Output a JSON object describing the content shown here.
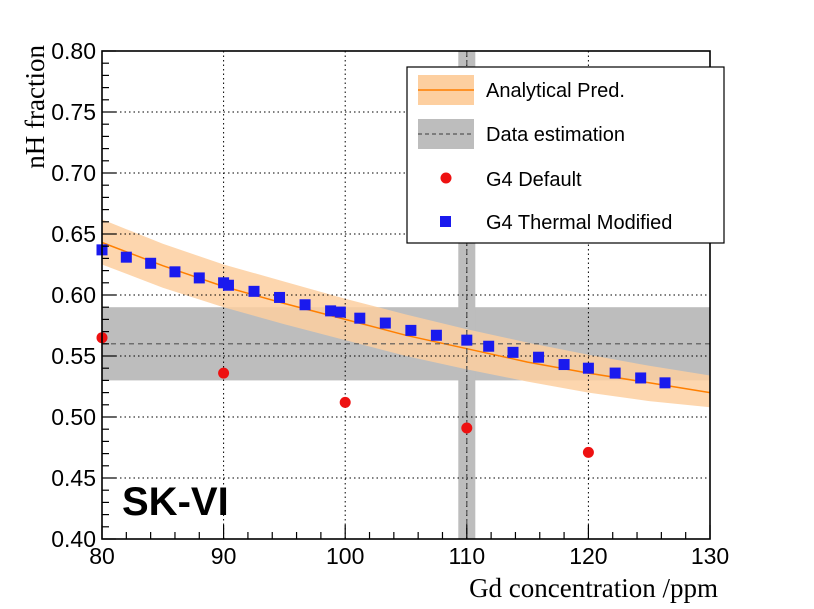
{
  "chart_data": {
    "type": "scatter",
    "title": "",
    "xlabel": "Gd concentration /ppm",
    "ylabel": "nH fraction",
    "xlim": [
      80,
      130
    ],
    "ylim": [
      0.4,
      0.8
    ],
    "x_ticks": [
      80,
      90,
      100,
      110,
      120,
      130
    ],
    "x_tick_labels": [
      "80",
      "90",
      "100",
      "110",
      "120",
      "130"
    ],
    "y_ticks": [
      0.4,
      0.45,
      0.5,
      0.55,
      0.6,
      0.65,
      0.7,
      0.75,
      0.8
    ],
    "y_tick_labels": [
      "0.40",
      "0.45",
      "0.50",
      "0.55",
      "0.60",
      "0.65",
      "0.70",
      "0.75",
      "0.80"
    ],
    "grid": true,
    "watermark": "SK-VI",
    "legend_position": "top-right",
    "legend": [
      {
        "label": "Analytical Pred.",
        "kind": "band-line"
      },
      {
        "label": "Data estimation",
        "kind": "band-dashed"
      },
      {
        "label": "G4 Default",
        "kind": "circle"
      },
      {
        "label": "G4 Thermal Modified",
        "kind": "square"
      }
    ],
    "analytical_prediction": {
      "x": [
        79.5,
        85,
        90,
        95,
        100,
        105,
        110,
        115,
        120,
        125,
        130.5
      ],
      "y": [
        0.643,
        0.624,
        0.607,
        0.593,
        0.58,
        0.567,
        0.556,
        0.545,
        0.536,
        0.528,
        0.52
      ],
      "band_upper": [
        0.662,
        0.642,
        0.625,
        0.611,
        0.597,
        0.584,
        0.572,
        0.561,
        0.551,
        0.542,
        0.534
      ],
      "band_lower": [
        0.625,
        0.606,
        0.59,
        0.576,
        0.563,
        0.55,
        0.539,
        0.529,
        0.52,
        0.513,
        0.508
      ],
      "line_color": "#ff7f00",
      "band_color": "#fdcfa0"
    },
    "data_estimation": {
      "x_center": 110,
      "x_band": [
        109.3,
        110.7
      ],
      "y_center": 0.56,
      "y_band": [
        0.53,
        0.59
      ],
      "band_color": "#bdbdbd",
      "line_color": "#555555"
    },
    "series": [
      {
        "name": "G4 Default",
        "marker": "circle",
        "color": "#ee1111",
        "x": [
          80,
          90,
          100,
          110,
          120
        ],
        "y": [
          0.565,
          0.536,
          0.512,
          0.491,
          0.471
        ]
      },
      {
        "name": "G4 Thermal Modified",
        "marker": "square",
        "color": "#1a1aee",
        "x": [
          80,
          82,
          84,
          86,
          88,
          90,
          90.4,
          92.5,
          94.6,
          96.7,
          98.8,
          99.6,
          101.2,
          103.3,
          105.4,
          107.5,
          110,
          111.8,
          113.8,
          115.9,
          118,
          120,
          122.2,
          124.3,
          126.3
        ],
        "y": [
          0.637,
          0.631,
          0.626,
          0.619,
          0.614,
          0.61,
          0.608,
          0.603,
          0.598,
          0.592,
          0.587,
          0.586,
          0.581,
          0.577,
          0.571,
          0.567,
          0.563,
          0.558,
          0.553,
          0.549,
          0.543,
          0.54,
          0.536,
          0.532,
          0.528
        ]
      }
    ]
  }
}
